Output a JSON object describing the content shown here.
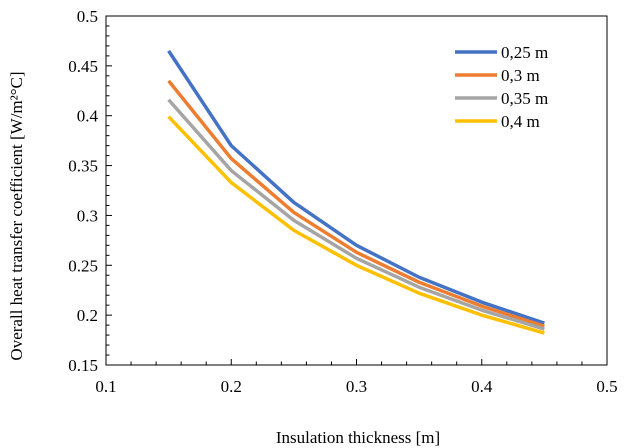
{
  "chart_data": {
    "type": "line",
    "title": "",
    "xlabel": "Insulation thickness [m]",
    "ylabel": "Overall heat transfer coefficient [W/m²°C]",
    "xlim": [
      0.1,
      0.5
    ],
    "ylim": [
      0.15,
      0.5
    ],
    "x_ticks": [
      0.1,
      0.2,
      0.3,
      0.4,
      0.5
    ],
    "x_tick_labels": [
      "0.1",
      "0.2",
      "0.3",
      "0.4",
      "0.5"
    ],
    "y_ticks": [
      0.15,
      0.2,
      0.25,
      0.3,
      0.35,
      0.4,
      0.45,
      0.5
    ],
    "y_tick_labels": [
      "0.15",
      "0.2",
      "0.25",
      "0.3",
      "0.35",
      "0.4",
      "0.45",
      "0.5"
    ],
    "grid": false,
    "legend_position": "top-right",
    "x": [
      0.15,
      0.2,
      0.25,
      0.3,
      0.35,
      0.4,
      0.45
    ],
    "series": [
      {
        "name": "0,25 m",
        "color": "#4472C4",
        "values": [
          0.465,
          0.37,
          0.313,
          0.27,
          0.238,
          0.213,
          0.192
        ]
      },
      {
        "name": "0,3 m",
        "color": "#ED7D31",
        "values": [
          0.435,
          0.357,
          0.303,
          0.263,
          0.233,
          0.209,
          0.189
        ]
      },
      {
        "name": "0,35 m",
        "color": "#A5A5A5",
        "values": [
          0.416,
          0.345,
          0.295,
          0.257,
          0.228,
          0.205,
          0.186
        ]
      },
      {
        "name": "0,4 m",
        "color": "#FFC000",
        "values": [
          0.399,
          0.333,
          0.285,
          0.25,
          0.222,
          0.2,
          0.182
        ]
      }
    ]
  }
}
